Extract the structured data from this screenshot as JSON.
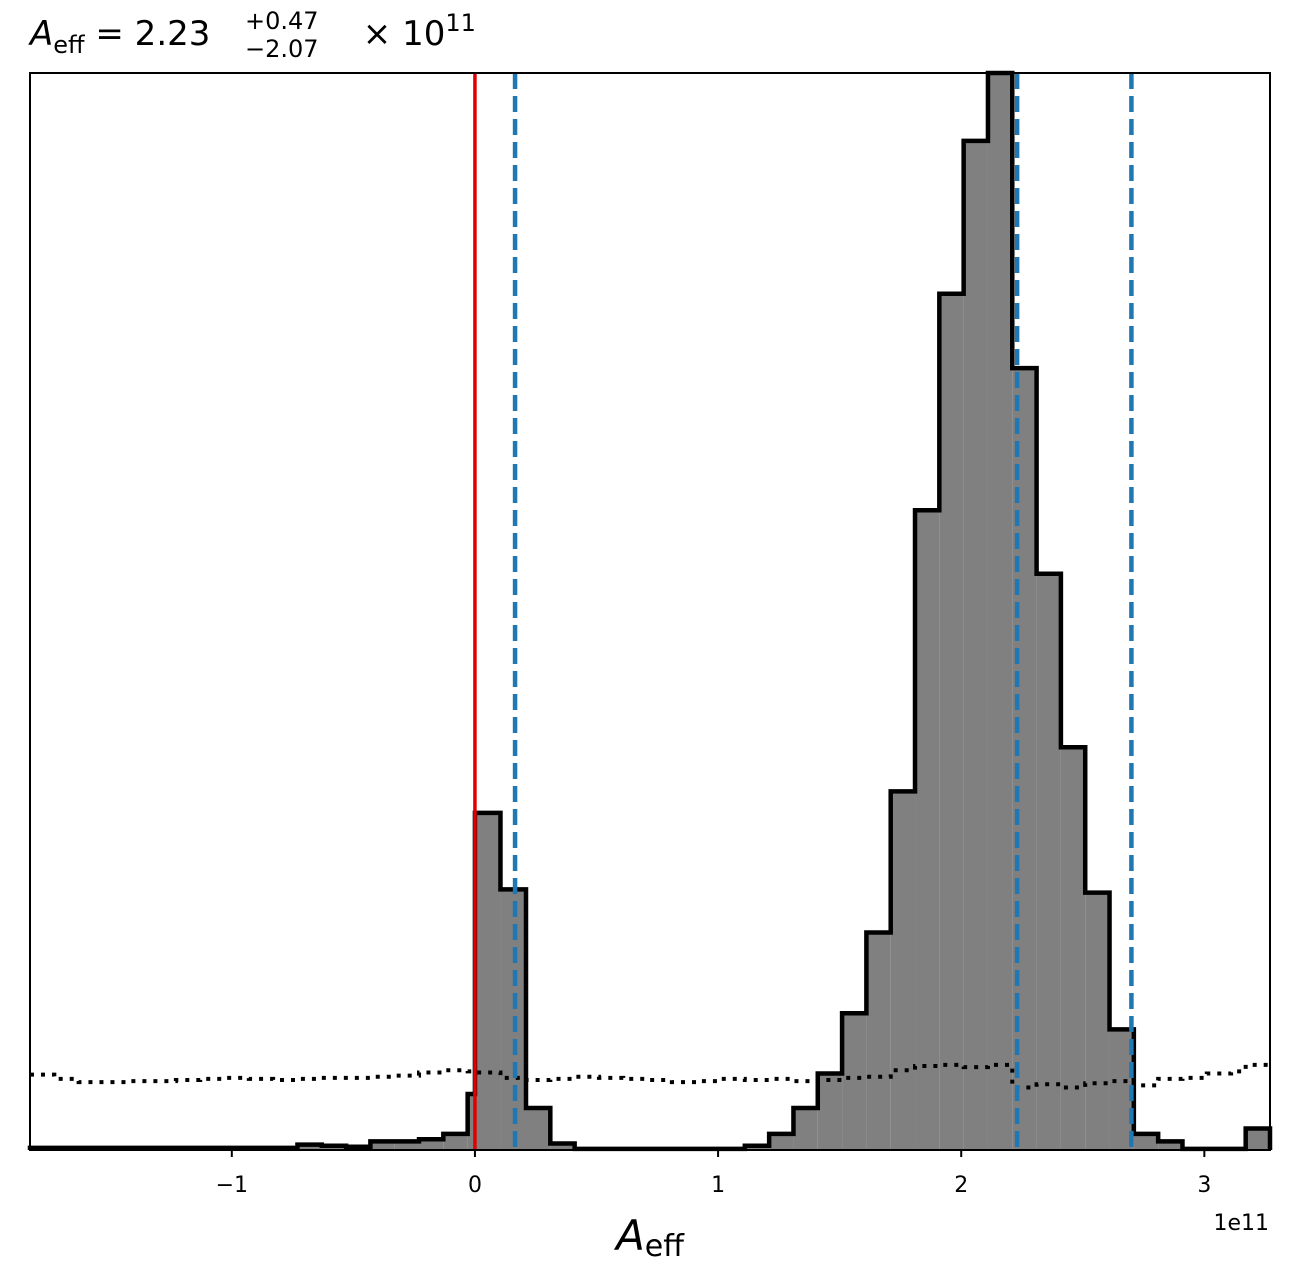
{
  "chart_data": {
    "type": "histogram",
    "title": {
      "symbol": "A",
      "subscript": "eff",
      "equals": " = ",
      "value": "2.23",
      "sup": "+0.47",
      "sub": "−2.07",
      "tail": " × 10",
      "exp": "11"
    },
    "xlabel": {
      "symbol": "A",
      "subscript": "eff"
    },
    "x_offset_text": "1e11",
    "x_scale": 100000000000.0,
    "xlim": [
      -1.83,
      3.27
    ],
    "ylim": [
      0,
      1.0
    ],
    "x_ticks": [
      {
        "value": -1,
        "label": "−1"
      },
      {
        "value": 0,
        "label": "0"
      },
      {
        "value": 1,
        "label": "1"
      },
      {
        "value": 2,
        "label": "2"
      },
      {
        "value": 3,
        "label": "3"
      }
    ],
    "histogram": {
      "fill_color": "#808080",
      "edge_color": "#000000",
      "bin_edges": [
        -1.83,
        -1.73,
        -1.63,
        -1.53,
        -1.43,
        -1.33,
        -1.23,
        -1.13,
        -1.03,
        -0.93,
        -0.83,
        -0.73,
        -0.63,
        -0.53,
        -0.43,
        -0.33,
        -0.23,
        -0.13,
        -0.03,
        0.0,
        0.105,
        0.21,
        0.31,
        0.41,
        0.51,
        0.61,
        0.71,
        0.81,
        0.91,
        1.01,
        1.11,
        1.21,
        1.31,
        1.41,
        1.51,
        1.61,
        1.71,
        1.81,
        1.91,
        2.01,
        2.11,
        2.21,
        2.31,
        2.41,
        2.51,
        2.61,
        2.71,
        2.81,
        2.91,
        3.01,
        3.11,
        3.17,
        3.27
      ],
      "counts": [
        0.002,
        0.002,
        0.002,
        0.002,
        0.002,
        0.002,
        0.002,
        0.002,
        0.002,
        0.002,
        0.002,
        0.005,
        0.004,
        0.003,
        0.008,
        0.008,
        0.01,
        0.015,
        0.052,
        0.313,
        0.242,
        0.039,
        0.006,
        0.001,
        0.001,
        0.001,
        0.001,
        0.001,
        0.001,
        0.001,
        0.004,
        0.015,
        0.039,
        0.071,
        0.127,
        0.202,
        0.333,
        0.594,
        0.795,
        0.937,
        1.0,
        0.726,
        0.535,
        0.374,
        0.239,
        0.112,
        0.015,
        0.008,
        0.001,
        0.001,
        0.001,
        0.02
      ]
    },
    "prior": {
      "style": "dotted",
      "color": "#000000",
      "values": [
        0.07,
        0.066,
        0.063,
        0.063,
        0.064,
        0.064,
        0.065,
        0.066,
        0.067,
        0.066,
        0.065,
        0.066,
        0.067,
        0.067,
        0.068,
        0.069,
        0.072,
        0.074,
        0.073,
        0.072,
        0.067,
        0.065,
        0.066,
        0.068,
        0.067,
        0.066,
        0.065,
        0.063,
        0.064,
        0.066,
        0.065,
        0.066,
        0.064,
        0.065,
        0.067,
        0.068,
        0.074,
        0.078,
        0.079,
        0.077,
        0.079,
        0.058,
        0.061,
        0.058,
        0.062,
        0.064,
        0.06,
        0.066,
        0.067,
        0.071,
        0.073,
        0.079
      ]
    },
    "median_line": {
      "x": 0.0,
      "color": "#e00000"
    },
    "dashed_lines": {
      "color": "#1f77b4",
      "x": [
        0.165,
        2.23,
        2.7
      ]
    }
  }
}
